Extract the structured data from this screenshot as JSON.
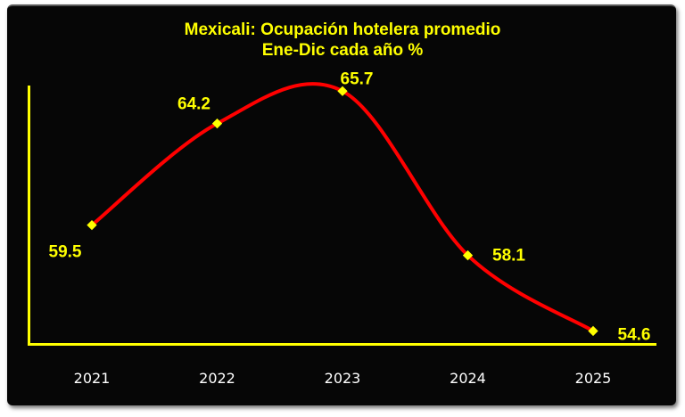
{
  "chart_data": {
    "type": "line",
    "title": "Mexicali: Ocupación hotelera promedio",
    "subtitle": "Ene-Dic cada año %",
    "categories": [
      "2021",
      "2022",
      "2023",
      "2024",
      "2025"
    ],
    "values": [
      59.5,
      64.2,
      65.7,
      58.1,
      54.6
    ],
    "data_labels": [
      "59.5",
      "64.2",
      "65.7",
      "58.1",
      "54.6"
    ],
    "ylim": [
      54,
      66
    ],
    "smoothed": true,
    "grid": false,
    "colors": {
      "background": "#060606",
      "line": "#ff0000",
      "marker": "#ffff00",
      "axis": "#ffff00",
      "title": "#ffff00",
      "tick_labels": "#ffffff"
    }
  }
}
